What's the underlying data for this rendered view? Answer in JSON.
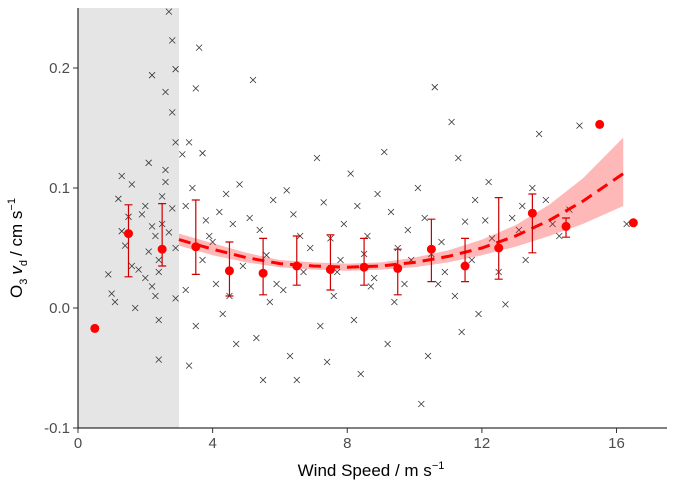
{
  "chart_data": {
    "type": "scatter",
    "title": "",
    "xlabel": "Wind Speed / m s",
    "xlabel_sup": "−1",
    "ylabel": {
      "o": "O",
      "three": "3",
      "v": "v",
      "d": "d",
      "rest": "/ cm s",
      "sup": "−1"
    },
    "xlim": [
      0,
      17.5
    ],
    "ylim": [
      -0.1,
      0.25
    ],
    "x_ticks": [
      0,
      4,
      8,
      12,
      16
    ],
    "x_tick_labels": [
      "0",
      "4",
      "8",
      "12",
      "16"
    ],
    "y_ticks": [
      -0.1,
      0.0,
      0.1,
      0.2
    ],
    "y_tick_labels": [
      "-0.1",
      "0.0",
      "0.1",
      "0.2"
    ],
    "grid": false,
    "shaded_region": {
      "x": [
        0,
        3
      ],
      "color": "#e5e5e5"
    },
    "binned_means": [
      {
        "x": 0.5,
        "y": -0.017,
        "lo": null,
        "hi": null
      },
      {
        "x": 1.5,
        "y": 0.062,
        "lo": 0.026,
        "hi": 0.086
      },
      {
        "x": 2.5,
        "y": 0.049,
        "lo": 0.035,
        "hi": 0.087
      },
      {
        "x": 3.5,
        "y": 0.051,
        "lo": 0.028,
        "hi": 0.09
      },
      {
        "x": 4.5,
        "y": 0.031,
        "lo": 0.01,
        "hi": 0.055
      },
      {
        "x": 5.5,
        "y": 0.029,
        "lo": 0.011,
        "hi": 0.058
      },
      {
        "x": 6.5,
        "y": 0.035,
        "lo": 0.019,
        "hi": 0.06
      },
      {
        "x": 7.5,
        "y": 0.032,
        "lo": 0.015,
        "hi": 0.061
      },
      {
        "x": 8.5,
        "y": 0.034,
        "lo": 0.019,
        "hi": 0.058
      },
      {
        "x": 9.5,
        "y": 0.033,
        "lo": 0.011,
        "hi": 0.049
      },
      {
        "x": 10.5,
        "y": 0.049,
        "lo": 0.022,
        "hi": 0.074
      },
      {
        "x": 11.5,
        "y": 0.035,
        "lo": 0.022,
        "hi": 0.058
      },
      {
        "x": 12.5,
        "y": 0.05,
        "lo": 0.024,
        "hi": 0.092
      },
      {
        "x": 13.5,
        "y": 0.079,
        "lo": 0.046,
        "hi": 0.095
      },
      {
        "x": 14.5,
        "y": 0.068,
        "lo": 0.059,
        "hi": 0.075
      },
      {
        "x": 15.5,
        "y": 0.153,
        "lo": null,
        "hi": null
      },
      {
        "x": 16.5,
        "y": 0.071,
        "lo": null,
        "hi": null
      }
    ],
    "fit": {
      "style": "dashed",
      "x": [
        3,
        4,
        5,
        6,
        7,
        8,
        9,
        10,
        11,
        12,
        13,
        14,
        15,
        16.2
      ],
      "y": [
        0.057,
        0.049,
        0.042,
        0.037,
        0.035,
        0.034,
        0.035,
        0.038,
        0.043,
        0.05,
        0.06,
        0.073,
        0.089,
        0.112
      ],
      "lower": [
        0.052,
        0.044,
        0.038,
        0.034,
        0.032,
        0.031,
        0.032,
        0.034,
        0.038,
        0.044,
        0.051,
        0.06,
        0.07,
        0.085
      ],
      "upper": [
        0.062,
        0.054,
        0.046,
        0.04,
        0.038,
        0.037,
        0.038,
        0.042,
        0.048,
        0.057,
        0.069,
        0.086,
        0.108,
        0.142
      ]
    },
    "raw_points": [
      [
        1.3,
        0.11
      ],
      [
        1.6,
        0.103
      ],
      [
        1.2,
        0.091
      ],
      [
        1.0,
        0.012
      ],
      [
        1.1,
        0.005
      ],
      [
        1.7,
        0.0
      ],
      [
        0.9,
        0.028
      ],
      [
        1.5,
        0.076
      ],
      [
        1.4,
        0.052
      ],
      [
        1.8,
        0.032
      ],
      [
        2.0,
        0.085
      ],
      [
        2.2,
        0.194
      ],
      [
        2.4,
        0.04
      ],
      [
        2.5,
        0.07
      ],
      [
        2.7,
        0.063
      ],
      [
        2.9,
        0.05
      ],
      [
        2.3,
        0.01
      ],
      [
        2.6,
        0.105
      ],
      [
        2.1,
        0.121
      ],
      [
        2.4,
        -0.043
      ],
      [
        2.7,
        0.247
      ],
      [
        2.8,
        0.223
      ],
      [
        2.9,
        0.199
      ],
      [
        2.6,
        0.18
      ],
      [
        2.8,
        0.163
      ],
      [
        2.4,
        0.03
      ],
      [
        2.0,
        0.025
      ],
      [
        2.2,
        0.068
      ],
      [
        2.9,
        0.138
      ],
      [
        2.6,
        0.115
      ],
      [
        1.9,
        0.078
      ],
      [
        2.3,
        0.06
      ],
      [
        2.5,
        0.093
      ],
      [
        2.1,
        0.047
      ],
      [
        2.8,
        0.083
      ],
      [
        2.4,
        -0.01
      ],
      [
        1.6,
        0.035
      ],
      [
        2.2,
        0.018
      ],
      [
        1.3,
        0.064
      ],
      [
        2.9,
        0.008
      ],
      [
        3.1,
        0.128
      ],
      [
        3.3,
        0.138
      ],
      [
        3.6,
        0.217
      ],
      [
        3.5,
        0.183
      ],
      [
        3.7,
        0.129
      ],
      [
        3.4,
        0.1
      ],
      [
        3.2,
        0.085
      ],
      [
        3.8,
        0.073
      ],
      [
        3.9,
        0.06
      ],
      [
        3.2,
        0.015
      ],
      [
        3.5,
        -0.015
      ],
      [
        3.7,
        0.04
      ],
      [
        3.3,
        -0.048
      ],
      [
        4.0,
        0.055
      ],
      [
        4.2,
        0.08
      ],
      [
        4.4,
        0.095
      ],
      [
        4.6,
        0.07
      ],
      [
        4.8,
        0.103
      ],
      [
        4.1,
        0.02
      ],
      [
        4.3,
        -0.005
      ],
      [
        4.7,
        -0.03
      ],
      [
        4.5,
        0.01
      ],
      [
        4.9,
        0.035
      ],
      [
        5.2,
        0.19
      ],
      [
        5.1,
        0.075
      ],
      [
        5.4,
        0.065
      ],
      [
        5.6,
        0.044
      ],
      [
        5.8,
        0.09
      ],
      [
        5.3,
        -0.025
      ],
      [
        5.5,
        -0.06
      ],
      [
        5.7,
        0.005
      ],
      [
        5.9,
        0.02
      ],
      [
        6.2,
        0.098
      ],
      [
        6.4,
        0.078
      ],
      [
        6.6,
        0.06
      ],
      [
        6.1,
        0.015
      ],
      [
        6.3,
        -0.04
      ],
      [
        6.5,
        -0.06
      ],
      [
        6.7,
        0.03
      ],
      [
        6.9,
        0.05
      ],
      [
        7.1,
        0.125
      ],
      [
        7.3,
        0.088
      ],
      [
        7.5,
        0.058
      ],
      [
        7.7,
        0.03
      ],
      [
        7.2,
        -0.015
      ],
      [
        7.4,
        -0.045
      ],
      [
        7.6,
        0.01
      ],
      [
        7.9,
        0.07
      ],
      [
        8.1,
        0.112
      ],
      [
        8.3,
        0.085
      ],
      [
        8.5,
        0.045
      ],
      [
        8.7,
        0.018
      ],
      [
        8.2,
        -0.01
      ],
      [
        8.4,
        -0.055
      ],
      [
        8.6,
        0.06
      ],
      [
        8.9,
        0.095
      ],
      [
        9.1,
        0.13
      ],
      [
        9.3,
        0.08
      ],
      [
        9.5,
        0.05
      ],
      [
        9.7,
        0.02
      ],
      [
        9.2,
        -0.03
      ],
      [
        9.4,
        0.005
      ],
      [
        9.8,
        0.065
      ],
      [
        10.1,
        0.1
      ],
      [
        10.3,
        0.075
      ],
      [
        10.5,
        0.045
      ],
      [
        10.7,
        0.02
      ],
      [
        10.2,
        -0.08
      ],
      [
        10.4,
        -0.04
      ],
      [
        10.6,
        0.184
      ],
      [
        10.8,
        0.055
      ],
      [
        11.1,
        0.155
      ],
      [
        11.3,
        0.125
      ],
      [
        11.5,
        0.072
      ],
      [
        11.7,
        0.04
      ],
      [
        11.2,
        0.01
      ],
      [
        11.4,
        -0.02
      ],
      [
        11.8,
        0.09
      ],
      [
        12.1,
        0.073
      ],
      [
        12.3,
        0.058
      ],
      [
        12.5,
        0.03
      ],
      [
        12.7,
        0.003
      ],
      [
        12.2,
        0.105
      ],
      [
        12.9,
        0.075
      ],
      [
        13.1,
        0.065
      ],
      [
        13.3,
        0.04
      ],
      [
        13.5,
        0.1
      ],
      [
        13.7,
        0.145
      ],
      [
        13.2,
        0.085
      ],
      [
        13.9,
        0.09
      ],
      [
        14.1,
        0.07
      ],
      [
        14.3,
        0.06
      ],
      [
        14.6,
        0.082
      ],
      [
        14.9,
        0.152
      ],
      [
        16.3,
        0.07
      ],
      [
        11.9,
        -0.005
      ],
      [
        10.9,
        0.03
      ],
      [
        9.9,
        0.04
      ],
      [
        8.8,
        0.025
      ],
      [
        7.8,
        0.04
      ]
    ]
  }
}
